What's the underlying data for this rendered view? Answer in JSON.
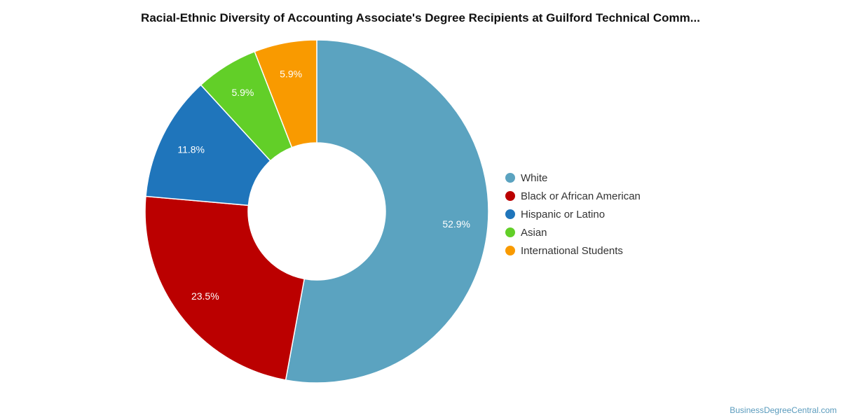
{
  "chart_data": {
    "type": "pie",
    "donut": true,
    "title": "Racial-Ethnic Diversity of Accounting Associate's Degree Recipients at Guilford Technical Comm...",
    "categories": [
      "White",
      "Black or African American",
      "Hispanic or Latino",
      "Asian",
      "International Students"
    ],
    "values": [
      52.9,
      23.5,
      11.8,
      5.9,
      5.9
    ],
    "value_labels": [
      "52.9%",
      "23.5%",
      "11.8%",
      "5.9%",
      "5.9%"
    ],
    "colors": [
      "#5ba3c0",
      "#bb0000",
      "#1f75bb",
      "#62cf28",
      "#f99a00"
    ],
    "legend": "right"
  },
  "credit": "BusinessDegreeCentral.com"
}
